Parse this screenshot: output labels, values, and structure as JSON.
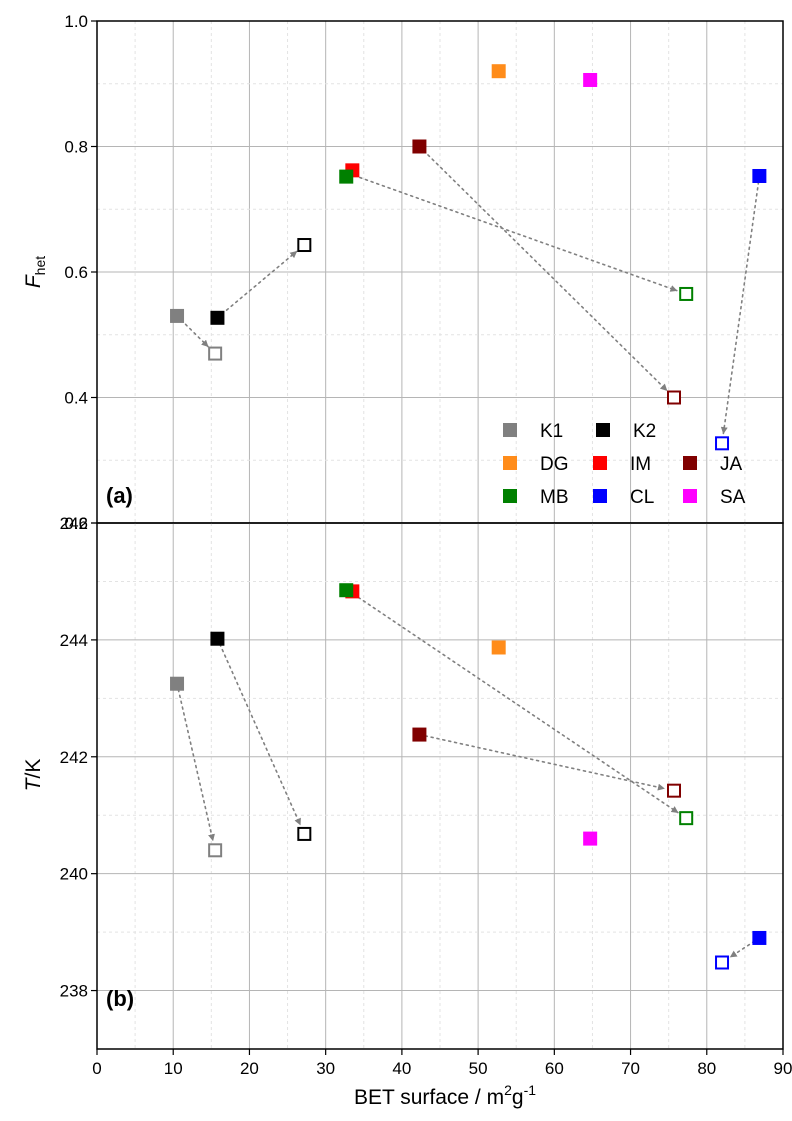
{
  "chart_data": [
    {
      "type": "scatter",
      "panel_label": "(a)",
      "ylabel_main": "F",
      "ylabel_sub": "het",
      "ylim": [
        0.2,
        1.0
      ],
      "yticks": [
        "0.2",
        "0.4",
        "0.6",
        "0.8",
        "1.0"
      ],
      "xlim": [
        0,
        90
      ],
      "grid": true,
      "legend": {
        "placement": "bottom-right",
        "rows": [
          [
            {
              "name": "K1",
              "color": "#808080"
            },
            {
              "name": "K2",
              "color": "#000000"
            }
          ],
          [
            {
              "name": "DG",
              "color": "#ff8c1a"
            },
            {
              "name": "IM",
              "color": "#ff0000"
            },
            {
              "name": "JA",
              "color": "#800000"
            }
          ],
          [
            {
              "name": "MB",
              "color": "#008000"
            },
            {
              "name": "CL",
              "color": "#0000ff"
            },
            {
              "name": "SA",
              "color": "#ff00ff"
            }
          ]
        ]
      },
      "series": [
        {
          "name": "K1",
          "color": "#808080",
          "points": [
            {
              "x": 10.5,
              "y": 0.53,
              "fill": true
            },
            {
              "x": 15.5,
              "y": 0.47,
              "fill": false
            }
          ]
        },
        {
          "name": "K2",
          "color": "#000000",
          "points": [
            {
              "x": 15.8,
              "y": 0.527,
              "fill": true
            },
            {
              "x": 27.2,
              "y": 0.643,
              "fill": false
            }
          ]
        },
        {
          "name": "DG",
          "color": "#ff8c1a",
          "points": [
            {
              "x": 52.7,
              "y": 0.92,
              "fill": true
            }
          ]
        },
        {
          "name": "IM",
          "color": "#ff0000",
          "points": [
            {
              "x": 33.5,
              "y": 0.762,
              "fill": true
            }
          ]
        },
        {
          "name": "JA",
          "color": "#800000",
          "points": [
            {
              "x": 42.3,
              "y": 0.8,
              "fill": true
            },
            {
              "x": 75.7,
              "y": 0.4,
              "fill": false
            }
          ]
        },
        {
          "name": "MB",
          "color": "#008000",
          "points": [
            {
              "x": 32.7,
              "y": 0.752,
              "fill": true
            },
            {
              "x": 77.3,
              "y": 0.565,
              "fill": false
            }
          ]
        },
        {
          "name": "CL",
          "color": "#0000ff",
          "points": [
            {
              "x": 86.9,
              "y": 0.753,
              "fill": true
            },
            {
              "x": 82.0,
              "y": 0.327,
              "fill": false
            }
          ]
        },
        {
          "name": "SA",
          "color": "#ff00ff",
          "points": [
            {
              "x": 64.7,
              "y": 0.906,
              "fill": true
            }
          ]
        }
      ],
      "arrows": [
        {
          "from": [
            10.5,
            0.53
          ],
          "to": [
            15.5,
            0.47
          ]
        },
        {
          "from": [
            15.8,
            0.527
          ],
          "to": [
            27.2,
            0.643
          ]
        },
        {
          "from": [
            33.0,
            0.757
          ],
          "to": [
            77.3,
            0.565
          ]
        },
        {
          "from": [
            42.3,
            0.8
          ],
          "to": [
            75.7,
            0.4
          ]
        },
        {
          "from": [
            86.9,
            0.753
          ],
          "to": [
            82.0,
            0.327
          ]
        }
      ]
    },
    {
      "type": "scatter",
      "panel_label": "(b)",
      "ylabel_main": "T",
      "ylabel_sub": "",
      "ylabel_rest": "/K",
      "ylim": [
        237,
        246
      ],
      "yticks": [
        "238",
        "240",
        "242",
        "244",
        "246"
      ],
      "xlim": [
        0,
        90
      ],
      "xticks": [
        "0",
        "10",
        "20",
        "30",
        "40",
        "50",
        "60",
        "70",
        "80",
        "90"
      ],
      "xlabel_main": "BET surface / m",
      "xlabel_sup1": "2",
      "xlabel_mid": "g",
      "xlabel_sup2": "-1",
      "grid": true,
      "series": [
        {
          "name": "K1",
          "color": "#808080",
          "points": [
            {
              "x": 10.5,
              "y": 243.25,
              "fill": true
            },
            {
              "x": 15.5,
              "y": 240.4,
              "fill": false
            }
          ]
        },
        {
          "name": "K2",
          "color": "#000000",
          "points": [
            {
              "x": 15.8,
              "y": 244.02,
              "fill": true
            },
            {
              "x": 27.2,
              "y": 240.68,
              "fill": false
            }
          ]
        },
        {
          "name": "DG",
          "color": "#ff8c1a",
          "points": [
            {
              "x": 52.7,
              "y": 243.87,
              "fill": true
            }
          ]
        },
        {
          "name": "IM",
          "color": "#ff0000",
          "points": [
            {
              "x": 33.5,
              "y": 244.83,
              "fill": true
            }
          ]
        },
        {
          "name": "JA",
          "color": "#800000",
          "points": [
            {
              "x": 42.3,
              "y": 242.38,
              "fill": true
            },
            {
              "x": 75.7,
              "y": 241.42,
              "fill": false
            }
          ]
        },
        {
          "name": "MB",
          "color": "#008000",
          "points": [
            {
              "x": 32.7,
              "y": 244.85,
              "fill": true
            },
            {
              "x": 77.3,
              "y": 240.95,
              "fill": false
            }
          ]
        },
        {
          "name": "CL",
          "color": "#0000ff",
          "points": [
            {
              "x": 86.9,
              "y": 238.9,
              "fill": true
            },
            {
              "x": 82.0,
              "y": 238.48,
              "fill": false
            }
          ]
        },
        {
          "name": "SA",
          "color": "#ff00ff",
          "points": [
            {
              "x": 64.7,
              "y": 240.6,
              "fill": true
            }
          ]
        }
      ],
      "arrows": [
        {
          "from": [
            10.5,
            243.25
          ],
          "to": [
            15.5,
            240.4
          ]
        },
        {
          "from": [
            15.8,
            244.02
          ],
          "to": [
            27.2,
            240.68
          ]
        },
        {
          "from": [
            33.0,
            244.84
          ],
          "to": [
            77.3,
            240.95
          ]
        },
        {
          "from": [
            42.3,
            242.38
          ],
          "to": [
            75.7,
            241.42
          ]
        },
        {
          "from": [
            86.9,
            238.9
          ],
          "to": [
            82.0,
            238.48
          ]
        }
      ]
    }
  ]
}
